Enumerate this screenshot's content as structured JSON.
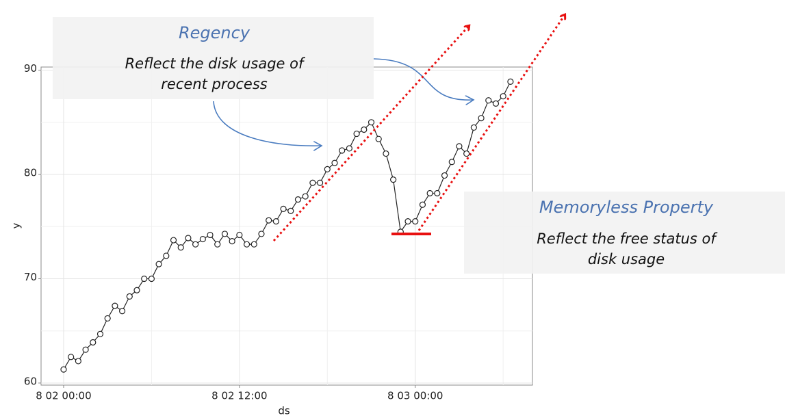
{
  "chart_data": {
    "type": "line",
    "x_label": "ds",
    "y_label": "y",
    "x": [
      0,
      0.5,
      1,
      1.5,
      2,
      2.5,
      3,
      3.5,
      4,
      4.5,
      5,
      5.5,
      6,
      6.5,
      7,
      7.5,
      8,
      8.5,
      9,
      9.5,
      10,
      10.5,
      11,
      11.5,
      12,
      12.5,
      13,
      13.5,
      14,
      14.5,
      15,
      15.5,
      16,
      16.5,
      17,
      17.5,
      18,
      18.5,
      19,
      19.5,
      20,
      20.5,
      21,
      21.5,
      22,
      22.5,
      23,
      23.5,
      24,
      24.5,
      25,
      25.5,
      26,
      26.5,
      27,
      27.5,
      28,
      28.5,
      29,
      29.5,
      30,
      30.5
    ],
    "values": [
      61.3,
      62.5,
      62.1,
      63.2,
      63.9,
      64.7,
      66.2,
      67.4,
      66.9,
      68.3,
      68.9,
      70.0,
      70.0,
      71.4,
      72.2,
      73.7,
      73.0,
      73.9,
      73.3,
      73.8,
      74.2,
      73.3,
      74.3,
      73.6,
      74.2,
      73.3,
      73.3,
      74.3,
      75.6,
      75.5,
      76.7,
      76.5,
      77.6,
      77.9,
      79.2,
      79.2,
      80.5,
      81.1,
      82.3,
      82.5,
      83.9,
      84.3,
      85.0,
      83.4,
      82.0,
      79.5,
      74.5,
      75.5,
      75.5,
      77.1,
      78.2,
      78.2,
      79.9,
      81.2,
      82.7,
      82.0,
      84.5,
      85.4,
      87.1,
      86.8,
      87.5,
      88.9
    ],
    "color": "#222222",
    "xlim": [
      -1.54,
      32.0
    ],
    "ylim": [
      59.8,
      90.3
    ],
    "xticks": [
      {
        "value": 0,
        "label": "8 02 00:00"
      },
      {
        "value": 12,
        "label": "8 02 12:00"
      },
      {
        "value": 24,
        "label": "8 03 00:00"
      }
    ],
    "x_minor_ticks": [
      6,
      18,
      30
    ],
    "yticks": [
      60,
      70,
      80,
      90
    ],
    "y_minor_ticks": [
      65,
      75,
      85
    ],
    "grid": true,
    "annotations": [
      {
        "title": "Regency",
        "lines": [
          "Reflect the disk usage of",
          "recent process"
        ]
      },
      {
        "title": "Memoryless Property",
        "lines": [
          "Reflect the free status of",
          "disk usage"
        ]
      }
    ]
  }
}
